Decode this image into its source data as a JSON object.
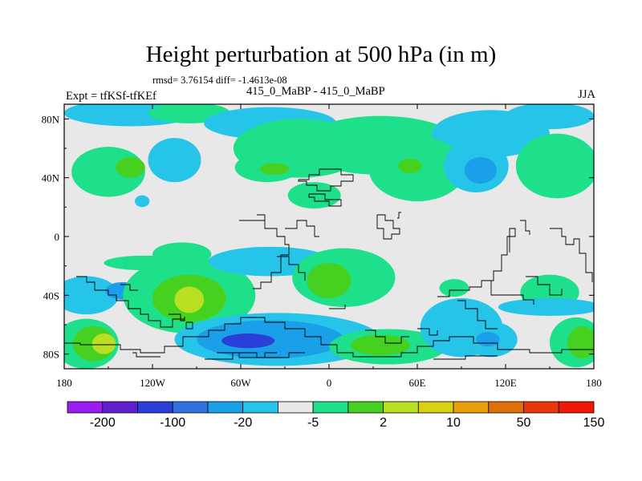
{
  "chart_data": {
    "type": "heatmap",
    "title": "Height perturbation at 500 hPa (in m)",
    "stats_text": "rmsd= 3.76154 diff= -1.4613e-08",
    "left_label": "Expt = tfKSf-tfKEf",
    "center_label": "415_0_MaBP - 415_0_MaBP",
    "season": "JJA",
    "x_axis": {
      "range": [
        -180,
        180
      ],
      "ticks": [
        -180,
        -120,
        -60,
        0,
        60,
        120,
        180
      ],
      "tick_labels": [
        "180",
        "120W",
        "60W",
        "0",
        "60E",
        "120E",
        "180"
      ]
    },
    "y_axis": {
      "range": [
        -90,
        90
      ],
      "ticks": [
        80,
        40,
        0,
        -40,
        -80
      ],
      "tick_labels": [
        "80N",
        "40N",
        "0",
        "40S",
        "80S"
      ]
    },
    "colorbar": {
      "labels": [
        "-200",
        "-100",
        "-20",
        "-5",
        "2",
        "10",
        "50",
        "150"
      ],
      "colors": [
        "#9a1cf0",
        "#6020d0",
        "#2a3fd8",
        "#2f72e0",
        "#1aa0e8",
        "#26c4e8",
        "#e8e8e8",
        "#1ee08a",
        "#46d020",
        "#b8e020",
        "#d8d010",
        "#e8a008",
        "#e07008",
        "#e83808",
        "#f01808"
      ]
    },
    "blobs": [
      {
        "lon": -135,
        "lat": 84,
        "rx": 45,
        "ry": 9,
        "level": "-5"
      },
      {
        "lon": -95,
        "lat": 84,
        "rx": 28,
        "ry": 7,
        "level": "2"
      },
      {
        "lon": -40,
        "lat": 77,
        "rx": 45,
        "ry": 11,
        "level": "-5"
      },
      {
        "lon": -20,
        "lat": 60,
        "rx": 45,
        "ry": 20,
        "level": "2"
      },
      {
        "lon": 35,
        "lat": 62,
        "rx": 55,
        "ry": 20,
        "level": "2"
      },
      {
        "lon": 110,
        "lat": 70,
        "rx": 40,
        "ry": 16,
        "level": "-5"
      },
      {
        "lon": 150,
        "lat": 82,
        "rx": 30,
        "ry": 9,
        "level": "-5"
      },
      {
        "lon": -150,
        "lat": 44,
        "rx": 25,
        "ry": 17,
        "level": "2"
      },
      {
        "lon": -135,
        "lat": 47,
        "rx": 10,
        "ry": 7,
        "level": "10"
      },
      {
        "lon": -105,
        "lat": 52,
        "rx": 18,
        "ry": 15,
        "level": "-5"
      },
      {
        "lon": -42,
        "lat": 47,
        "rx": 22,
        "ry": 10,
        "level": "2"
      },
      {
        "lon": -37,
        "lat": 46,
        "rx": 10,
        "ry": 4,
        "level": "10"
      },
      {
        "lon": 60,
        "lat": 46,
        "rx": 33,
        "ry": 22,
        "level": "2"
      },
      {
        "lon": 55,
        "lat": 48,
        "rx": 8,
        "ry": 5,
        "level": "10"
      },
      {
        "lon": 100,
        "lat": 48,
        "rx": 22,
        "ry": 18,
        "level": "-5"
      },
      {
        "lon": 103,
        "lat": 45,
        "rx": 11,
        "ry": 9,
        "level": "-20"
      },
      {
        "lon": 155,
        "lat": 48,
        "rx": 28,
        "ry": 22,
        "level": "2"
      },
      {
        "lon": -10,
        "lat": 28,
        "rx": 18,
        "ry": 9,
        "level": "2"
      },
      {
        "lon": -127,
        "lat": 24,
        "rx": 5,
        "ry": 4,
        "level": "-5"
      },
      {
        "lon": -165,
        "lat": -40,
        "rx": 22,
        "ry": 13,
        "level": "-5"
      },
      {
        "lon": -140,
        "lat": -37,
        "rx": 12,
        "ry": 6,
        "level": "-20"
      },
      {
        "lon": -125,
        "lat": -18,
        "rx": 28,
        "ry": 5,
        "level": "2"
      },
      {
        "lon": -95,
        "lat": -40,
        "rx": 45,
        "ry": 26,
        "level": "2"
      },
      {
        "lon": -95,
        "lat": -42,
        "rx": 25,
        "ry": 16,
        "level": "10"
      },
      {
        "lon": -95,
        "lat": -43,
        "rx": 10,
        "ry": 9,
        "level": "50"
      },
      {
        "lon": -100,
        "lat": -12,
        "rx": 20,
        "ry": 8,
        "level": "2"
      },
      {
        "lon": -40,
        "lat": -17,
        "rx": 42,
        "ry": 10,
        "level": "-5"
      },
      {
        "lon": 10,
        "lat": -28,
        "rx": 35,
        "ry": 20,
        "level": "2"
      },
      {
        "lon": 0,
        "lat": -30,
        "rx": 15,
        "ry": 12,
        "level": "10"
      },
      {
        "lon": -35,
        "lat": -70,
        "rx": 70,
        "ry": 18,
        "level": "-5"
      },
      {
        "lon": -40,
        "lat": -70,
        "rx": 50,
        "ry": 13,
        "level": "-20"
      },
      {
        "lon": -55,
        "lat": -71,
        "rx": 18,
        "ry": 5,
        "level": "-100"
      },
      {
        "lon": -165,
        "lat": -73,
        "rx": 22,
        "ry": 17,
        "level": "2"
      },
      {
        "lon": -160,
        "lat": -73,
        "rx": 14,
        "ry": 12,
        "level": "10"
      },
      {
        "lon": -153,
        "lat": -73,
        "rx": 8,
        "ry": 7,
        "level": "50"
      },
      {
        "lon": 168,
        "lat": -72,
        "rx": 18,
        "ry": 17,
        "level": "2"
      },
      {
        "lon": 172,
        "lat": -72,
        "rx": 10,
        "ry": 11,
        "level": "10"
      },
      {
        "lon": 40,
        "lat": -75,
        "rx": 40,
        "ry": 12,
        "level": "2"
      },
      {
        "lon": 35,
        "lat": -74,
        "rx": 20,
        "ry": 7,
        "level": "10"
      },
      {
        "lon": 90,
        "lat": -62,
        "rx": 28,
        "ry": 20,
        "level": "-5"
      },
      {
        "lon": 110,
        "lat": -70,
        "rx": 18,
        "ry": 12,
        "level": "-5"
      },
      {
        "lon": 108,
        "lat": -70,
        "rx": 8,
        "ry": 5,
        "level": "-20"
      },
      {
        "lon": 150,
        "lat": -38,
        "rx": 20,
        "ry": 12,
        "level": "2"
      },
      {
        "lon": 85,
        "lat": -35,
        "rx": 10,
        "ry": 6,
        "level": "2"
      },
      {
        "lon": 150,
        "lat": -48,
        "rx": 35,
        "ry": 6,
        "level": "-5"
      }
    ]
  }
}
